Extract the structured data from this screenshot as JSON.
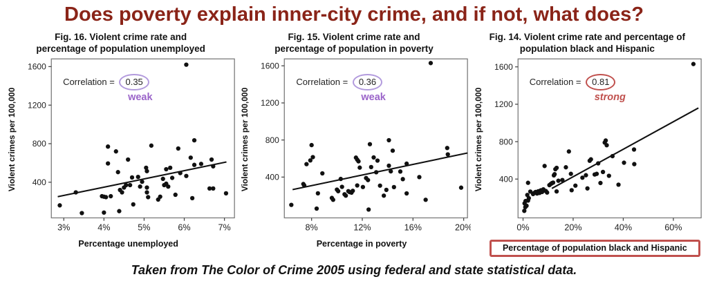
{
  "page": {
    "title": "Does poverty explain inner-city crime, and if not, what does?",
    "caption": "Taken from The Color of Crime 2005 using federal and state statistical data.",
    "colors": {
      "title_text": "#8a2418",
      "weak_text": "#9a63c9",
      "weak_ellipse": "#b29add",
      "strong_text": "#c0504d",
      "strong_ellipse": "#c0504d",
      "xlabel_box_border": "#c0504d",
      "points": "#111111"
    }
  },
  "chart_data": [
    {
      "type": "scatter",
      "title": "Fig. 16. Violent crime rate and percentage of population unemployed",
      "xlabel": "Percentage unemployed",
      "ylabel": "Violent crimes per 100,000",
      "correlation_label": "Correlation =",
      "correlation": "0.35",
      "strength": "weak",
      "accent": "purple",
      "xlim": [
        2.69,
        7.25
      ],
      "ylim": [
        30,
        1680
      ],
      "xtick_values": [
        3,
        4,
        5,
        6,
        7
      ],
      "xtick_labels": [
        "3%",
        "4%",
        "5%",
        "6%",
        "7%"
      ],
      "ytick_values": [
        400,
        800,
        1200,
        1600
      ],
      "ytick_labels": [
        "400",
        "800",
        "1200",
        "1600"
      ],
      "grid": false,
      "trendline": {
        "x1": 2.85,
        "y1": 250,
        "x2": 7.05,
        "y2": 610
      },
      "points": [
        [
          2.9,
          160
        ],
        [
          3.3,
          295
        ],
        [
          3.45,
          80
        ],
        [
          3.95,
          255
        ],
        [
          4.0,
          85
        ],
        [
          4.0,
          250
        ],
        [
          4.05,
          245
        ],
        [
          4.1,
          770
        ],
        [
          4.1,
          595
        ],
        [
          4.17,
          255
        ],
        [
          4.3,
          720
        ],
        [
          4.35,
          505
        ],
        [
          4.4,
          320
        ],
        [
          4.38,
          100
        ],
        [
          4.45,
          295
        ],
        [
          4.5,
          345
        ],
        [
          4.55,
          370
        ],
        [
          4.6,
          635
        ],
        [
          4.65,
          370
        ],
        [
          4.7,
          450
        ],
        [
          4.73,
          170
        ],
        [
          4.85,
          455
        ],
        [
          4.9,
          355
        ],
        [
          4.95,
          405
        ],
        [
          5.05,
          550
        ],
        [
          5.07,
          515
        ],
        [
          5.07,
          345
        ],
        [
          5.07,
          295
        ],
        [
          5.1,
          245
        ],
        [
          5.18,
          780
        ],
        [
          5.35,
          220
        ],
        [
          5.4,
          250
        ],
        [
          5.47,
          435
        ],
        [
          5.5,
          370
        ],
        [
          5.55,
          535
        ],
        [
          5.55,
          385
        ],
        [
          5.6,
          355
        ],
        [
          5.65,
          550
        ],
        [
          5.7,
          445
        ],
        [
          5.78,
          270
        ],
        [
          5.85,
          750
        ],
        [
          5.9,
          495
        ],
        [
          6.05,
          465
        ],
        [
          6.05,
          1620
        ],
        [
          6.16,
          655
        ],
        [
          6.2,
          235
        ],
        [
          6.25,
          835
        ],
        [
          6.25,
          580
        ],
        [
          6.42,
          590
        ],
        [
          6.63,
          335
        ],
        [
          6.68,
          635
        ],
        [
          6.72,
          565
        ],
        [
          6.72,
          335
        ],
        [
          7.04,
          285
        ]
      ]
    },
    {
      "type": "scatter",
      "title": "Fig. 15. Violent crime rate and percentage of population in poverty",
      "xlabel": "Percentage in poverty",
      "ylabel": "Violent crimes per 100,000",
      "correlation_label": "Correlation =",
      "correlation": "0.36",
      "strength": "weak",
      "accent": "purple",
      "xlim": [
        5.85,
        20.3
      ],
      "ylim": [
        -40,
        1675
      ],
      "xtick_values": [
        8,
        12,
        16,
        20
      ],
      "xtick_labels": [
        "8%",
        "12%",
        "16%",
        "20%"
      ],
      "ytick_values": [
        400,
        800,
        1200,
        1600
      ],
      "ytick_labels": [
        "400",
        "800",
        "1200",
        "1600"
      ],
      "grid": false,
      "trendline": {
        "x1": 6.5,
        "y1": 265,
        "x2": 20.3,
        "y2": 660
      },
      "points": [
        [
          6.4,
          100
        ],
        [
          7.35,
          325
        ],
        [
          7.42,
          310
        ],
        [
          7.6,
          540
        ],
        [
          7.9,
          580
        ],
        [
          8.0,
          745
        ],
        [
          8.1,
          615
        ],
        [
          8.4,
          60
        ],
        [
          8.5,
          225
        ],
        [
          8.85,
          440
        ],
        [
          9.6,
          175
        ],
        [
          9.7,
          155
        ],
        [
          10.0,
          265
        ],
        [
          10.1,
          248
        ],
        [
          10.3,
          380
        ],
        [
          10.4,
          295
        ],
        [
          10.6,
          215
        ],
        [
          10.7,
          200
        ],
        [
          10.9,
          248
        ],
        [
          11.0,
          238
        ],
        [
          11.15,
          232
        ],
        [
          11.25,
          252
        ],
        [
          11.5,
          610
        ],
        [
          11.6,
          588
        ],
        [
          11.7,
          570
        ],
        [
          11.6,
          310
        ],
        [
          11.8,
          502
        ],
        [
          12.05,
          293
        ],
        [
          12.3,
          390
        ],
        [
          12.45,
          368
        ],
        [
          12.5,
          50
        ],
        [
          12.6,
          755
        ],
        [
          12.7,
          508
        ],
        [
          12.9,
          612
        ],
        [
          13.1,
          452
        ],
        [
          13.2,
          578
        ],
        [
          13.4,
          308
        ],
        [
          13.7,
          200
        ],
        [
          13.9,
          262
        ],
        [
          14.1,
          798
        ],
        [
          14.1,
          523
        ],
        [
          14.25,
          462
        ],
        [
          14.4,
          685
        ],
        [
          14.5,
          292
        ],
        [
          15.0,
          460
        ],
        [
          15.2,
          378
        ],
        [
          15.5,
          545
        ],
        [
          15.5,
          224
        ],
        [
          16.5,
          400
        ],
        [
          17.0,
          155
        ],
        [
          17.4,
          1630
        ],
        [
          18.7,
          714
        ],
        [
          18.75,
          645
        ],
        [
          19.8,
          286
        ]
      ]
    },
    {
      "type": "scatter",
      "title": "Fig. 14. Violent crime rate and percentage of population black and Hispanic",
      "xlabel": "Percentage of population black and Hispanic",
      "ylabel": "Violent crimes per 100,000",
      "correlation_label": "Correlation =",
      "correlation": "0.81",
      "strength": "strong",
      "accent": "red",
      "xlim": [
        -2,
        71.1
      ],
      "ylim": [
        -15,
        1685
      ],
      "xtick_values": [
        0,
        20,
        40,
        60
      ],
      "xtick_labels": [
        "0%",
        "20%",
        "40%",
        "60%"
      ],
      "ytick_values": [
        400,
        800,
        1200,
        1600
      ],
      "ytick_labels": [
        "400",
        "800",
        "1200",
        "1600"
      ],
      "grid": false,
      "trendline": {
        "x1": 11.5,
        "y1": 300,
        "x2": 70,
        "y2": 1160
      },
      "points": [
        [
          0.5,
          60
        ],
        [
          0.9,
          100
        ],
        [
          1.4,
          115
        ],
        [
          0.6,
          140
        ],
        [
          1.0,
          165
        ],
        [
          2.0,
          170
        ],
        [
          1.7,
          230
        ],
        [
          2.3,
          196
        ],
        [
          2.9,
          266
        ],
        [
          2.0,
          360
        ],
        [
          4.0,
          240
        ],
        [
          4.5,
          252
        ],
        [
          5.0,
          262
        ],
        [
          5.6,
          246
        ],
        [
          6.1,
          270
        ],
        [
          6.6,
          252
        ],
        [
          7.1,
          280
        ],
        [
          7.6,
          262
        ],
        [
          8.1,
          290
        ],
        [
          8.6,
          540
        ],
        [
          9.1,
          272
        ],
        [
          9.6,
          256
        ],
        [
          10.5,
          335
        ],
        [
          11.0,
          346
        ],
        [
          11.5,
          356
        ],
        [
          12.0,
          362
        ],
        [
          12.3,
          440
        ],
        [
          12.6,
          452
        ],
        [
          12.9,
          505
        ],
        [
          13.4,
          520
        ],
        [
          13.4,
          268
        ],
        [
          14.1,
          382
        ],
        [
          15.7,
          390
        ],
        [
          17.1,
          526
        ],
        [
          18.3,
          695
        ],
        [
          19.1,
          456
        ],
        [
          19.4,
          281
        ],
        [
          20.9,
          330
        ],
        [
          23.7,
          415
        ],
        [
          25.1,
          441
        ],
        [
          25.7,
          300
        ],
        [
          26.6,
          596
        ],
        [
          27.1,
          611
        ],
        [
          28.6,
          449
        ],
        [
          29.4,
          456
        ],
        [
          30.0,
          568
        ],
        [
          30.9,
          358
        ],
        [
          31.9,
          476
        ],
        [
          32.6,
          790
        ],
        [
          33.0,
          812
        ],
        [
          33.4,
          762
        ],
        [
          34.3,
          435
        ],
        [
          35.7,
          645
        ],
        [
          38.1,
          340
        ],
        [
          40.3,
          575
        ],
        [
          44.3,
          716
        ],
        [
          44.4,
          560
        ],
        [
          68.0,
          1630
        ]
      ]
    }
  ]
}
